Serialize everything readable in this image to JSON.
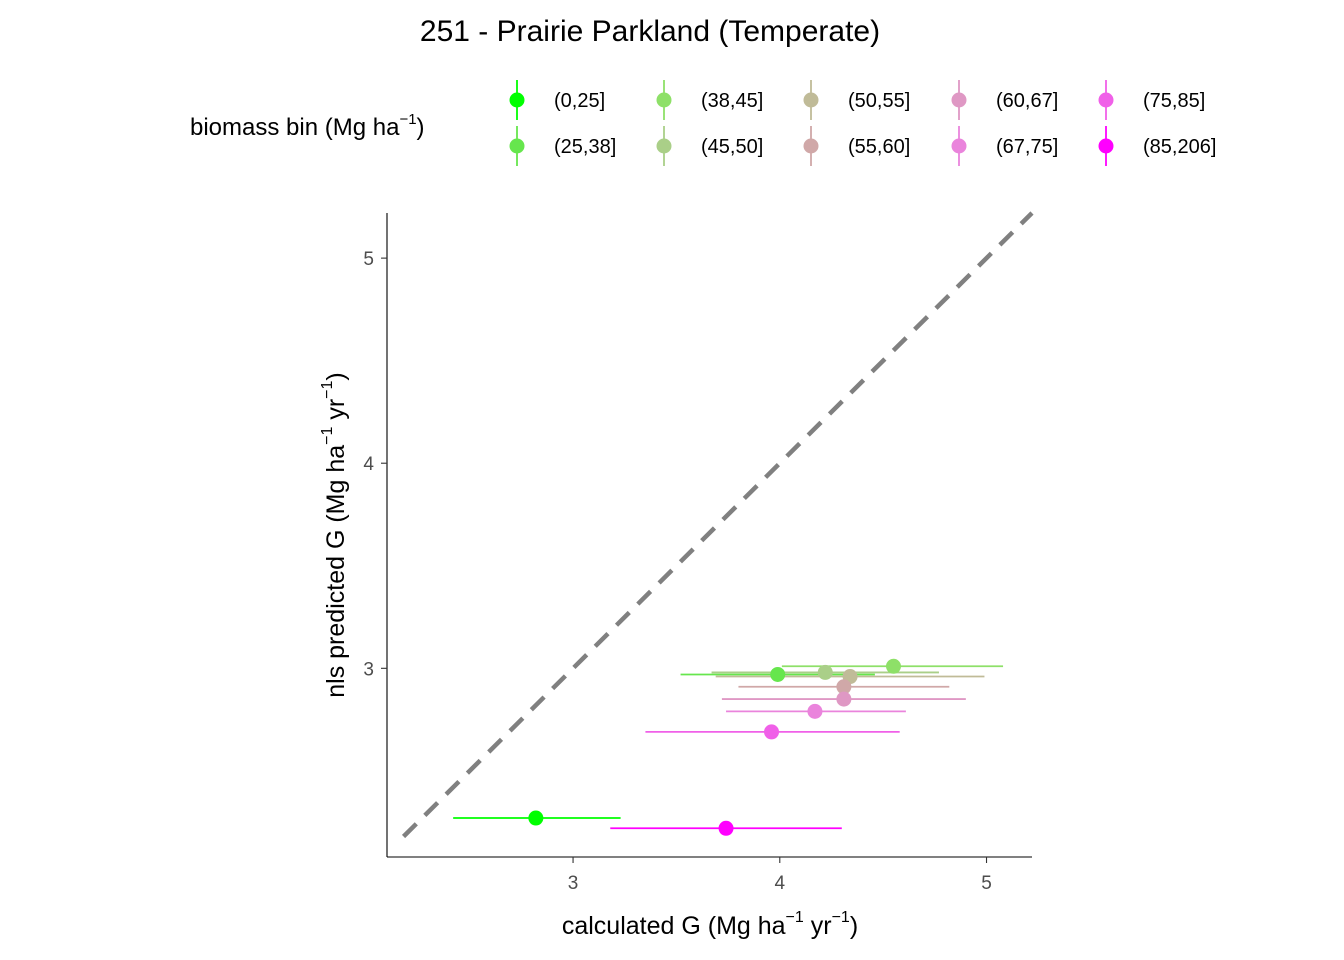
{
  "chart_data": {
    "type": "scatter",
    "title": "251 - Prairie Parkland (Temperate)",
    "xlabel": {
      "pre": "calculated G (Mg ha",
      "exp1": "−1",
      "mid": " yr",
      "exp2": "−1",
      "post": ")"
    },
    "ylabel": {
      "pre": "nls predicted G (Mg ha",
      "exp1": "−1",
      "mid": " yr",
      "exp2": "−1",
      "post": ")"
    },
    "xlim": [
      2.1,
      5.22
    ],
    "ylim": [
      2.08,
      5.22
    ],
    "xticks": [
      3,
      4,
      5
    ],
    "yticks": [
      3,
      4,
      5
    ],
    "grid": false,
    "reference_line": {
      "type": "identity",
      "style": "dashed",
      "color": "#808080"
    },
    "legend": {
      "position": "top",
      "title": {
        "pre": "biomass bin (Mg ha",
        "exp": "−1",
        "post": ")"
      }
    },
    "series": [
      {
        "name": "(0,25]",
        "color": "#00ff00",
        "x": 2.82,
        "y": 2.27,
        "xmin": 2.42,
        "xmax": 3.23
      },
      {
        "name": "(25,38]",
        "color": "#66e64d",
        "x": 3.99,
        "y": 2.97,
        "xmin": 3.52,
        "xmax": 4.46
      },
      {
        "name": "(38,45]",
        "color": "#8ee068",
        "x": 4.55,
        "y": 3.01,
        "xmin": 4.01,
        "xmax": 5.08
      },
      {
        "name": "(45,50]",
        "color": "#aacf88",
        "x": 4.22,
        "y": 2.98,
        "xmin": 3.67,
        "xmax": 4.77
      },
      {
        "name": "(50,55]",
        "color": "#c0bb98",
        "x": 4.34,
        "y": 2.96,
        "xmin": 3.69,
        "xmax": 4.99
      },
      {
        "name": "(55,60]",
        "color": "#d0a8a8",
        "x": 4.31,
        "y": 2.91,
        "xmin": 3.8,
        "xmax": 4.82
      },
      {
        "name": "(60,67]",
        "color": "#df98c4",
        "x": 4.31,
        "y": 2.85,
        "xmin": 3.72,
        "xmax": 4.9
      },
      {
        "name": "(67,75]",
        "color": "#ea84dc",
        "x": 4.17,
        "y": 2.79,
        "xmin": 3.74,
        "xmax": 4.61
      },
      {
        "name": "(75,85]",
        "color": "#f060e8",
        "x": 3.96,
        "y": 2.69,
        "xmin": 3.35,
        "xmax": 4.58
      },
      {
        "name": "(85,206]",
        "color": "#ff00ff",
        "x": 3.74,
        "y": 2.22,
        "xmin": 3.18,
        "xmax": 4.3
      }
    ]
  }
}
